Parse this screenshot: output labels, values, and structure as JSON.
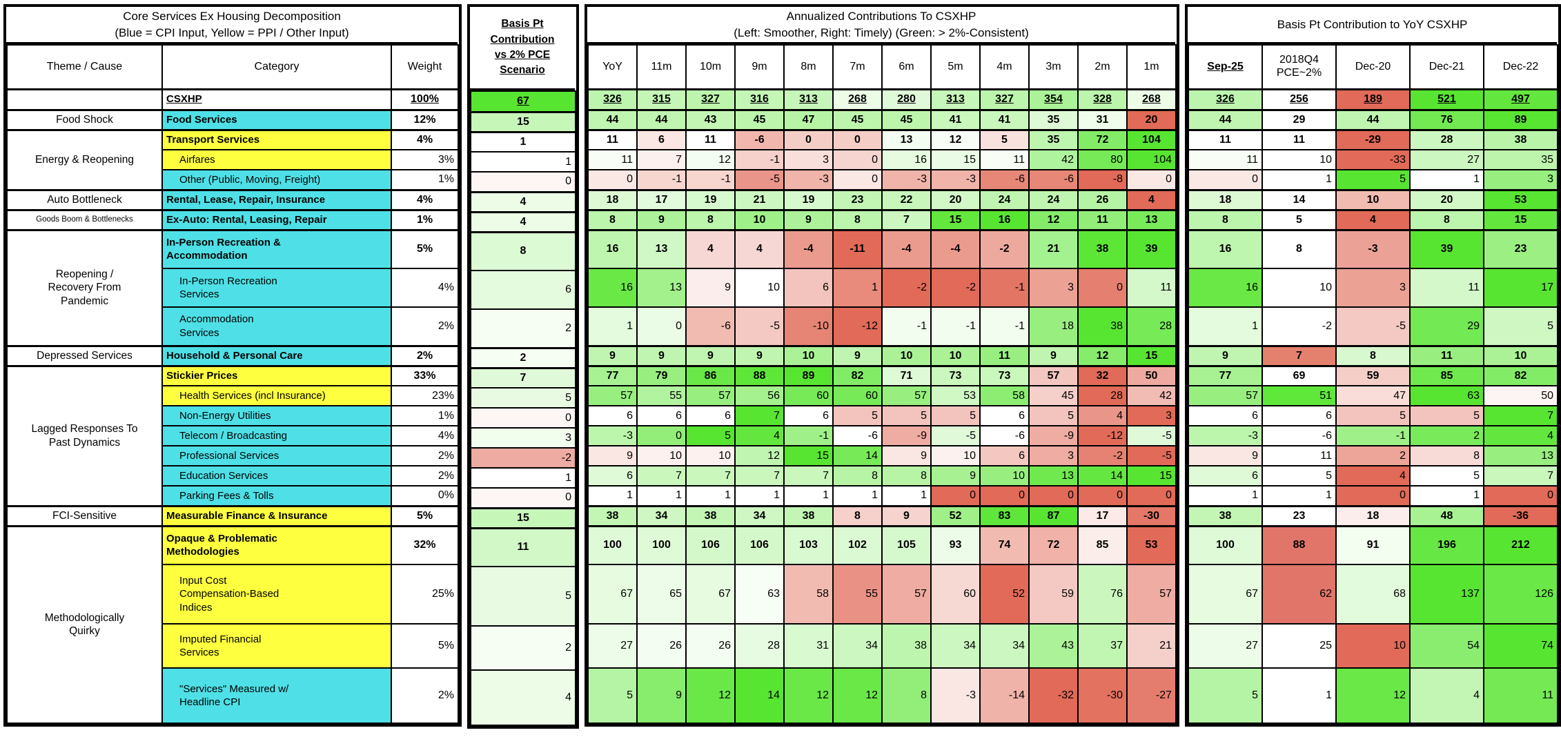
{
  "panels": {
    "left": {
      "title1": "Core Services Ex Housing Decomposition",
      "title2": "(Blue = CPI Input, Yellow = PPI / Other Input)",
      "columns": [
        "Theme / Cause",
        "Category",
        "Weight"
      ]
    },
    "bp": {
      "title": "Basis Pt\nContribution\nvs 2% PCE\nScenario"
    },
    "monthly": {
      "title1": "Annualized Contributions To CSXHP",
      "title2": "(Left: Smoother, Right: Timely) (Green: > 2%-Consistent)",
      "columns": [
        "YoY",
        "11m",
        "10m",
        "9m",
        "8m",
        "7m",
        "6m",
        "5m",
        "4m",
        "3m",
        "2m",
        "1m"
      ]
    },
    "right": {
      "title": "Basis Pt Contribution to YoY CSXHP",
      "columns": [
        "Sep-25",
        "2018Q4\nPCE~2%",
        "Dec-20",
        "Dec-21",
        "Dec-22"
      ]
    }
  },
  "palette": {
    "cyan": "#4ee0e6",
    "yellow": "#fdff3f",
    "green": "#58e531",
    "red": "#e16a58",
    "white": "#ffffff",
    "q4_red": "#e1756a",
    "q4_red_light": "#e4806e",
    "q4_green": "#5fe73a"
  },
  "rows": [
    {
      "theme": "",
      "themeSpan": 1,
      "category": "CSXHP",
      "fill": null,
      "main": true,
      "headerRow": true,
      "groupStart": false,
      "weight": "100%",
      "bp": 67,
      "monthly": [
        326,
        315,
        327,
        316,
        313,
        268,
        280,
        313,
        327,
        354,
        328,
        268
      ],
      "right": [
        326,
        256,
        189,
        521,
        497
      ],
      "h": 30
    },
    {
      "theme": "Food Shock",
      "themeSpan": 1,
      "category": "Food Services",
      "fill": "cyan",
      "main": true,
      "groupStart": true,
      "weight": "12%",
      "bp": 15,
      "monthly": [
        44,
        44,
        43,
        45,
        47,
        45,
        45,
        41,
        41,
        35,
        31,
        20
      ],
      "right": [
        44,
        29,
        44,
        76,
        89
      ],
      "h": 29
    },
    {
      "theme": "Energy & Reopening",
      "themeSpan": 3,
      "category": "Transport Services",
      "fill": "yellow",
      "main": true,
      "groupStart": true,
      "weight": "4%",
      "bp": 1,
      "monthly": [
        11,
        6,
        11,
        -6,
        0,
        0,
        13,
        12,
        5,
        35,
        72,
        104
      ],
      "right": [
        11,
        11,
        -29,
        28,
        38
      ],
      "h": 29
    },
    {
      "category": "Airfares",
      "fill": "yellow",
      "indent": true,
      "weight": "3%",
      "bp": 1,
      "monthly": [
        11,
        7,
        12,
        -1,
        3,
        0,
        16,
        15,
        11,
        42,
        80,
        104
      ],
      "right": [
        11,
        10,
        -33,
        27,
        35
      ],
      "h": 29
    },
    {
      "category": "Other (Public, Moving, Freight)",
      "fill": "cyan",
      "indent": true,
      "weight": "1%",
      "bp": 0,
      "monthly": [
        0,
        -1,
        -1,
        -5,
        -3,
        0,
        -3,
        -3,
        -6,
        -6,
        -8,
        0
      ],
      "right": [
        0,
        1,
        5,
        1,
        3
      ],
      "h": 29
    },
    {
      "theme": "Auto Bottleneck",
      "themeSpan": 1,
      "category": "Rental, Lease, Repair, Insurance",
      "fill": "cyan",
      "main": true,
      "groupStart": true,
      "weight": "4%",
      "bp": 4,
      "monthly": [
        18,
        17,
        19,
        21,
        19,
        23,
        22,
        20,
        24,
        24,
        26,
        4
      ],
      "right": [
        18,
        14,
        10,
        20,
        53
      ],
      "h": 29
    },
    {
      "theme": "Goods Boom & Bottlenecks",
      "themeSpan": 1,
      "themeSmall": true,
      "category": "Ex-Auto: Rental, Leasing, Repair",
      "fill": "cyan",
      "main": true,
      "groupStart": true,
      "weight": "1%",
      "bp": 4,
      "monthly": [
        8,
        9,
        8,
        10,
        9,
        8,
        7,
        15,
        16,
        12,
        11,
        13
      ],
      "right": [
        8,
        5,
        4,
        8,
        15
      ],
      "h": 29
    },
    {
      "theme": "Reopening /\nRecovery From\nPandemic",
      "themeSpan": 3,
      "category": "In-Person Recreation &\nAccommodation",
      "fill": "cyan",
      "main": true,
      "groupStart": true,
      "weight": "5%",
      "bp": 8,
      "monthly": [
        16,
        13,
        4,
        4,
        -4,
        -11,
        -4,
        -4,
        -2,
        21,
        38,
        39
      ],
      "right": [
        16,
        8,
        -3,
        39,
        23
      ],
      "h": 56
    },
    {
      "category": "In-Person Recreation\nServices",
      "fill": "cyan",
      "indent": true,
      "weight": "4%",
      "bp": 6,
      "monthly": [
        16,
        13,
        9,
        10,
        6,
        1,
        -2,
        -2,
        -1,
        3,
        0,
        11
      ],
      "right": [
        16,
        10,
        3,
        11,
        17
      ],
      "h": 56
    },
    {
      "category": "Accommodation\nServices",
      "fill": "cyan",
      "indent": true,
      "weight": "2%",
      "bp": 2,
      "monthly": [
        1,
        0,
        -6,
        -5,
        -10,
        -12,
        -1,
        -1,
        -1,
        18,
        38,
        28
      ],
      "right": [
        1,
        -2,
        -5,
        29,
        5
      ],
      "h": 56
    },
    {
      "theme": "Depressed Services",
      "themeSpan": 1,
      "category": "Household & Personal Care",
      "fill": "cyan",
      "main": true,
      "groupStart": true,
      "weight": "2%",
      "bp": 2,
      "monthly": [
        9,
        9,
        9,
        9,
        10,
        9,
        10,
        10,
        11,
        9,
        12,
        15
      ],
      "right": [
        9,
        7,
        8,
        11,
        10
      ],
      "q4color": "#e4806e",
      "h": 29
    },
    {
      "theme": "Lagged Responses To\nPast Dynamics",
      "themeSpan": 7,
      "category": "Stickier Prices",
      "fill": "yellow",
      "main": true,
      "groupStart": true,
      "weight": "33%",
      "bp": 7,
      "monthly": [
        77,
        79,
        86,
        88,
        89,
        82,
        71,
        73,
        73,
        57,
        32,
        50
      ],
      "right": [
        77,
        69,
        59,
        85,
        82
      ],
      "h": 29
    },
    {
      "category": "Health Services (incl Insurance)",
      "fill": "yellow",
      "indent": true,
      "weight": "23%",
      "bp": 5,
      "monthly": [
        57,
        55,
        57,
        56,
        60,
        60,
        57,
        53,
        58,
        45,
        28,
        42
      ],
      "right": [
        57,
        51,
        47,
        63,
        50
      ],
      "q4color": "#5fe73a",
      "h": 29
    },
    {
      "category": "Non-Energy Utilities",
      "fill": "cyan",
      "indent": true,
      "weight": "1%",
      "bp": 0,
      "monthly": [
        6,
        6,
        6,
        7,
        6,
        5,
        5,
        5,
        6,
        5,
        4,
        3
      ],
      "right": [
        6,
        6,
        5,
        5,
        7
      ],
      "h": 29
    },
    {
      "category": "Telecom / Broadcasting",
      "fill": "cyan",
      "indent": true,
      "weight": "4%",
      "bp": 3,
      "monthly": [
        -3,
        0,
        5,
        4,
        -1,
        -6,
        -9,
        -5,
        -6,
        -9,
        -12,
        -5
      ],
      "right": [
        -3,
        -6,
        -1,
        2,
        4
      ],
      "h": 29
    },
    {
      "category": "Professional Services",
      "fill": "cyan",
      "indent": true,
      "weight": "2%",
      "bp": -2,
      "monthly": [
        9,
        10,
        10,
        12,
        15,
        14,
        9,
        10,
        6,
        3,
        -2,
        -5
      ],
      "right": [
        9,
        11,
        2,
        8,
        13
      ],
      "h": 29
    },
    {
      "category": "Education Services",
      "fill": "cyan",
      "indent": true,
      "weight": "2%",
      "bp": 1,
      "monthly": [
        6,
        7,
        7,
        7,
        7,
        8,
        8,
        9,
        10,
        13,
        14,
        15
      ],
      "right": [
        6,
        5,
        4,
        5,
        7
      ],
      "h": 29
    },
    {
      "category": "Parking Fees & Tolls",
      "fill": "cyan",
      "indent": true,
      "weight": "0%",
      "bp": 0,
      "monthly": [
        1,
        1,
        1,
        1,
        1,
        1,
        1,
        0,
        0,
        0,
        0,
        0
      ],
      "right": [
        1,
        1,
        0,
        1,
        0
      ],
      "h": 29
    },
    {
      "theme": "FCI-Sensitive",
      "themeSpan": 1,
      "category": "Measurable Finance & Insurance",
      "fill": "yellow",
      "main": true,
      "groupStart": true,
      "weight": "5%",
      "bp": 15,
      "monthly": [
        38,
        34,
        38,
        34,
        38,
        8,
        9,
        52,
        83,
        87,
        17,
        -30
      ],
      "right": [
        38,
        23,
        18,
        48,
        -36
      ],
      "h": 29
    },
    {
      "theme": "Methodologically\nQuirky",
      "themeSpan": 4,
      "category": "Opaque & Problematic\nMethodologies",
      "fill": "yellow",
      "main": true,
      "groupStart": true,
      "weight": "32%",
      "bp": 11,
      "monthly": [
        100,
        100,
        106,
        106,
        103,
        102,
        105,
        93,
        74,
        72,
        85,
        53
      ],
      "right": [
        100,
        88,
        91,
        196,
        212
      ],
      "q4color": "#e1756a",
      "h": 56
    },
    {
      "category": "Input Cost\nCompensation-Based\nIndices",
      "fill": "yellow",
      "indent": true,
      "weight": "25%",
      "bp": 5,
      "monthly": [
        67,
        65,
        67,
        63,
        58,
        55,
        57,
        60,
        52,
        59,
        76,
        57
      ],
      "right": [
        67,
        62,
        68,
        137,
        126
      ],
      "q4color": "#e1756a",
      "h": 86
    },
    {
      "category": "Imputed Financial\nServices",
      "fill": "yellow",
      "indent": true,
      "weight": "5%",
      "bp": 2,
      "monthly": [
        27,
        26,
        26,
        28,
        31,
        34,
        38,
        34,
        34,
        43,
        37,
        21
      ],
      "right": [
        27,
        25,
        10,
        54,
        74
      ],
      "h": 64
    },
    {
      "category": "\"Services\" Measured w/\nHeadline CPI",
      "fill": "cyan",
      "indent": true,
      "weight": "2%",
      "bp": 4,
      "monthly": [
        5,
        9,
        12,
        14,
        12,
        12,
        8,
        -3,
        -14,
        -32,
        -30,
        -27
      ],
      "right": [
        5,
        1,
        12,
        4,
        11
      ],
      "h": 80
    }
  ]
}
